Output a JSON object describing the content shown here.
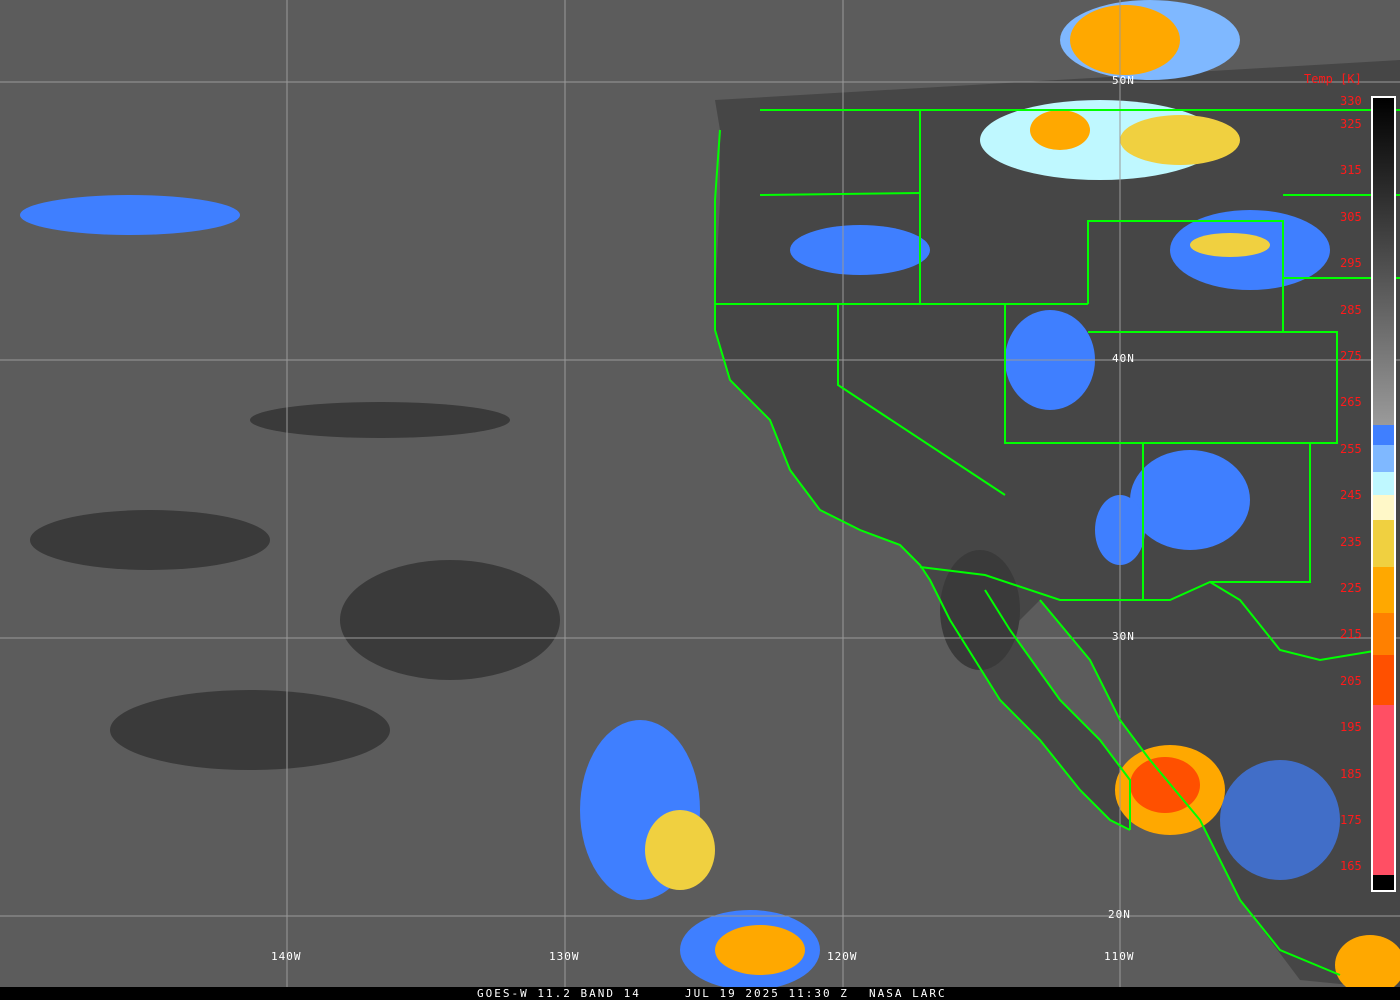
{
  "map": {
    "lat_labels": [
      "50N",
      "40N",
      "30N",
      "20N"
    ],
    "lon_labels": [
      "140W",
      "130W",
      "120W",
      "110W"
    ],
    "colors": {
      "ocean": "#5a5a5a",
      "land": "#444444",
      "borders": "#00ff00",
      "grid": "#9a9a9a",
      "labels": "#ff1a1a"
    }
  },
  "colorbar": {
    "title": "Temp [K]",
    "ticks": [
      "330",
      "325",
      "315",
      "305",
      "295",
      "285",
      "275",
      "265",
      "255",
      "245",
      "235",
      "225",
      "215",
      "205",
      "195",
      "185",
      "175",
      "165"
    ],
    "colors": [
      "#000000",
      "#888888",
      "#3f7fff",
      "#7fb8ff",
      "#bff8ff",
      "#fff8c8",
      "#f0d040",
      "#ffa800",
      "#ff8000",
      "#ff5000",
      "#ff4f64",
      "#000000"
    ]
  },
  "footer": {
    "satellite": "GOES-W 11.2 BAND 14",
    "datetime": "JUL 19 2025 11:30 Z",
    "source": "NASA LARC"
  }
}
